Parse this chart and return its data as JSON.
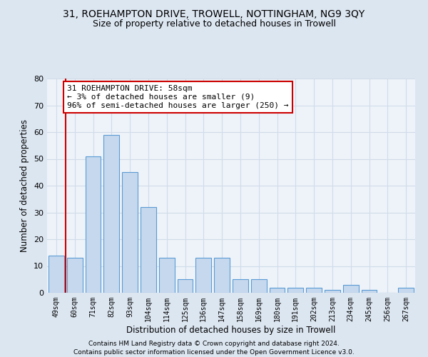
{
  "title": "31, ROEHAMPTON DRIVE, TROWELL, NOTTINGHAM, NG9 3QY",
  "subtitle": "Size of property relative to detached houses in Trowell",
  "xlabel": "Distribution of detached houses by size in Trowell",
  "ylabel": "Number of detached properties",
  "categories": [
    "49sqm",
    "60sqm",
    "71sqm",
    "82sqm",
    "93sqm",
    "104sqm",
    "114sqm",
    "125sqm",
    "136sqm",
    "147sqm",
    "158sqm",
    "169sqm",
    "180sqm",
    "191sqm",
    "202sqm",
    "213sqm",
    "234sqm",
    "245sqm",
    "256sqm",
    "267sqm"
  ],
  "values": [
    14,
    13,
    51,
    59,
    45,
    32,
    13,
    5,
    13,
    13,
    5,
    5,
    2,
    2,
    2,
    1,
    3,
    1,
    0,
    2
  ],
  "bar_color": "#c5d8ed",
  "bar_edge_color": "#5b9bd5",
  "vline_x": 0.5,
  "vline_color": "#cc0000",
  "annotation_text": "31 ROEHAMPTON DRIVE: 58sqm\n← 3% of detached houses are smaller (9)\n96% of semi-detached houses are larger (250) →",
  "annotation_box_color": "#ffffff",
  "annotation_box_edge_color": "#cc0000",
  "ylim": [
    0,
    80
  ],
  "yticks": [
    0,
    10,
    20,
    30,
    40,
    50,
    60,
    70,
    80
  ],
  "grid_color": "#d0dce8",
  "background_color": "#dce6f1",
  "plot_bg_color": "#eef3f9",
  "footer_line1": "Contains HM Land Registry data © Crown copyright and database right 2024.",
  "footer_line2": "Contains public sector information licensed under the Open Government Licence v3.0.",
  "title_fontsize": 10,
  "subtitle_fontsize": 9,
  "xlabel_fontsize": 8.5,
  "ylabel_fontsize": 8.5
}
